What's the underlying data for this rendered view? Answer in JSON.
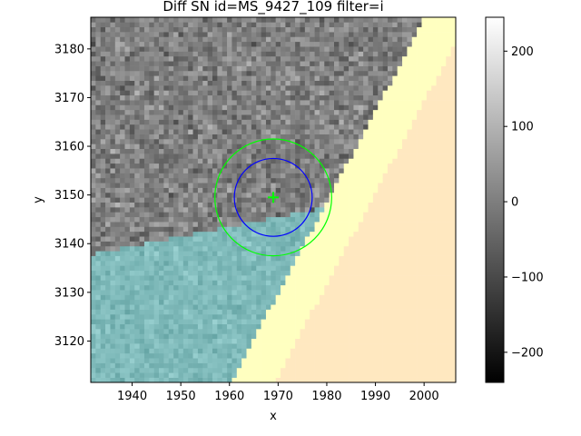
{
  "chart_data": {
    "type": "heatmap",
    "title": "Diff SN id=MS_9427_109 filter=i",
    "xlabel": "x",
    "ylabel": "y",
    "xlim": [
      1931.5,
      2006.5
    ],
    "ylim": [
      3111.5,
      3186.5
    ],
    "x_ticks": [
      1940,
      1950,
      1960,
      1970,
      1980,
      1990,
      2000
    ],
    "y_ticks": [
      3120,
      3130,
      3140,
      3150,
      3160,
      3170,
      3180
    ],
    "grid": false,
    "colorbar": {
      "cmap": "gray",
      "vmin": -240,
      "vmax": 245,
      "ticks": [
        -200,
        -100,
        0,
        100,
        200
      ]
    },
    "regions": [
      {
        "name": "masked-bright",
        "color": "#ffe8c0"
      },
      {
        "name": "masked-saturated",
        "color": "#ffffc0"
      },
      {
        "name": "masked-cyan",
        "color": "#6cd8d8"
      }
    ],
    "annotations": {
      "marker": {
        "type": "plus",
        "x": 1969,
        "y": 3149.5,
        "color": "#00ff00"
      },
      "inner_circle": {
        "cx": 1969,
        "cy": 3149.5,
        "r": 8,
        "color": "#0000ff"
      },
      "outer_circle": {
        "cx": 1969,
        "cy": 3149.5,
        "r": 12,
        "color": "#00ff00"
      }
    }
  }
}
